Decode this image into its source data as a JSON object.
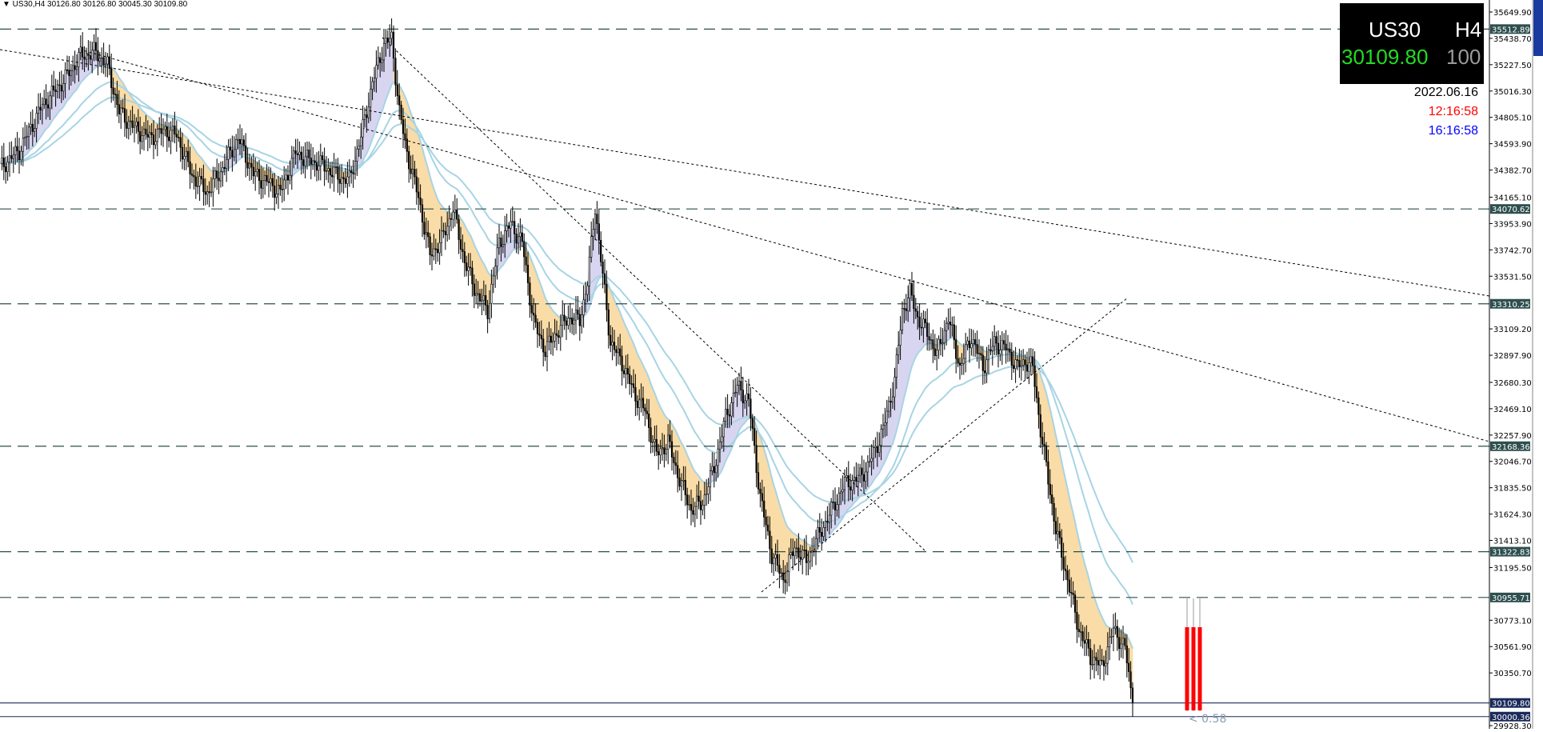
{
  "header": {
    "chart_info": "▼ US30,H4  30126.80 30126.80 30045.30 30109.80"
  },
  "info_box": {
    "symbol": "US30",
    "timeframe": "H4",
    "price": "30109.80",
    "spread": "100",
    "date": "2022.06.16",
    "time_red": "12:16:58",
    "time_blue": "16:16:58"
  },
  "colors": {
    "background": "#ffffff",
    "candle": "#000000",
    "bearish_fill": "#f9dca7",
    "bullish_fill": "#d8d5f0",
    "moving_average": "#a8d4e4",
    "level_line": "#2f4f4f",
    "trendline": "#000000",
    "info_price": "#22dd22",
    "time_red": "#ff0000",
    "time_blue": "#0000ff",
    "marker": "#ff0000"
  },
  "price_axis": {
    "ticks": [
      "35649.90",
      "35438.70",
      "35227.50",
      "35016.30",
      "34805.10",
      "34593.90",
      "34382.70",
      "34165.10",
      "33953.90",
      "33742.70",
      "33531.50",
      "33109.20",
      "32897.90",
      "32680.30",
      "32469.10",
      "32257.90",
      "32046.70",
      "31835.50",
      "31624.30",
      "31413.10",
      "31195.50",
      "30773.10",
      "30561.90",
      "30350.70",
      "29928.30"
    ],
    "level_labels": [
      "35512.89",
      "34070.62",
      "33310.25",
      "32168.36",
      "31322.83",
      "30955.71",
      "30109.80",
      "30000.36"
    ]
  },
  "bottom_label": "< 0.58",
  "chart_data": {
    "type": "candlestick",
    "symbol": "US30",
    "timeframe": "H4",
    "ylim": [
      29900,
      35700
    ],
    "horizontal_levels": [
      35512.89,
      34070.62,
      33310.25,
      32168.36,
      31322.83,
      30955.71
    ],
    "current_price": 30109.8,
    "close_path": [
      [
        0,
        34400
      ],
      [
        10,
        34540
      ],
      [
        22,
        34900
      ],
      [
        34,
        35120
      ],
      [
        42,
        35300
      ],
      [
        50,
        35330
      ],
      [
        56,
        35220
      ],
      [
        62,
        34850
      ],
      [
        70,
        34720
      ],
      [
        78,
        34640
      ],
      [
        86,
        34700
      ],
      [
        92,
        34660
      ],
      [
        100,
        34340
      ],
      [
        108,
        34200
      ],
      [
        116,
        34400
      ],
      [
        124,
        34640
      ],
      [
        132,
        34350
      ],
      [
        140,
        34280
      ],
      [
        146,
        34200
      ],
      [
        154,
        34520
      ],
      [
        160,
        34470
      ],
      [
        168,
        34420
      ],
      [
        176,
        34330
      ],
      [
        182,
        34300
      ],
      [
        188,
        34650
      ],
      [
        194,
        35080
      ],
      [
        200,
        35390
      ],
      [
        204,
        35440
      ],
      [
        208,
        34850
      ],
      [
        212,
        34520
      ],
      [
        218,
        34160
      ],
      [
        224,
        33700
      ],
      [
        230,
        33820
      ],
      [
        236,
        34070
      ],
      [
        242,
        33650
      ],
      [
        248,
        33400
      ],
      [
        254,
        33260
      ],
      [
        260,
        33800
      ],
      [
        266,
        33950
      ],
      [
        272,
        33800
      ],
      [
        278,
        33160
      ],
      [
        284,
        32940
      ],
      [
        290,
        33080
      ],
      [
        296,
        33200
      ],
      [
        302,
        33180
      ],
      [
        306,
        33480
      ],
      [
        310,
        34090
      ],
      [
        314,
        33530
      ],
      [
        318,
        33000
      ],
      [
        324,
        32840
      ],
      [
        330,
        32600
      ],
      [
        336,
        32450
      ],
      [
        342,
        32100
      ],
      [
        348,
        32200
      ],
      [
        354,
        31900
      ],
      [
        360,
        31660
      ],
      [
        366,
        31720
      ],
      [
        372,
        32000
      ],
      [
        378,
        32400
      ],
      [
        384,
        32650
      ],
      [
        390,
        32530
      ],
      [
        396,
        31760
      ],
      [
        402,
        31300
      ],
      [
        408,
        31100
      ],
      [
        414,
        31360
      ],
      [
        420,
        31250
      ],
      [
        428,
        31500
      ],
      [
        434,
        31680
      ],
      [
        440,
        31870
      ],
      [
        446,
        31900
      ],
      [
        452,
        32000
      ],
      [
        460,
        32300
      ],
      [
        466,
        32700
      ],
      [
        470,
        33250
      ],
      [
        474,
        33400
      ],
      [
        478,
        33200
      ],
      [
        484,
        33050
      ],
      [
        488,
        32900
      ],
      [
        494,
        33200
      ],
      [
        500,
        32800
      ],
      [
        506,
        33050
      ],
      [
        512,
        32800
      ],
      [
        518,
        33000
      ],
      [
        524,
        32950
      ],
      [
        530,
        32800
      ],
      [
        534,
        32850
      ],
      [
        538,
        32800
      ],
      [
        542,
        32300
      ],
      [
        546,
        31900
      ],
      [
        550,
        31500
      ],
      [
        556,
        31100
      ],
      [
        562,
        30700
      ],
      [
        568,
        30480
      ],
      [
        574,
        30400
      ],
      [
        580,
        30700
      ],
      [
        586,
        30550
      ],
      [
        590,
        30109.8
      ]
    ]
  }
}
